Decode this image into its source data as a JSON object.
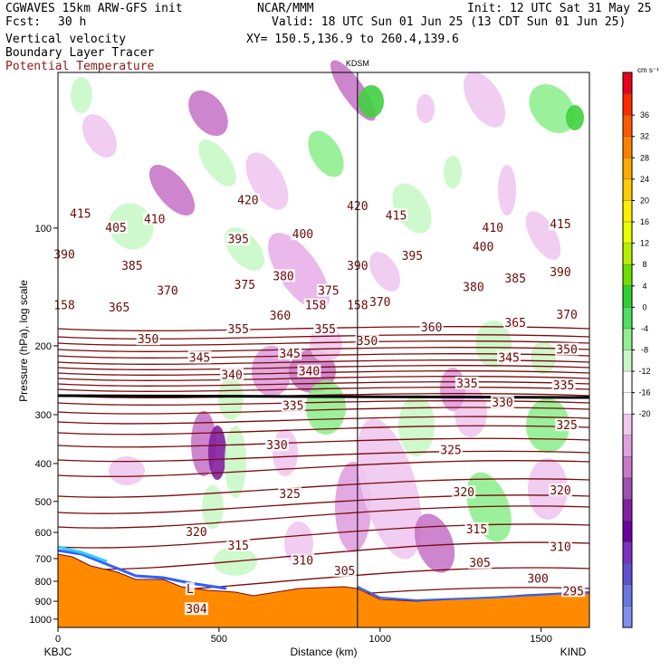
{
  "header": {
    "model": "CGWAVES 15km ARW-GFS init",
    "fcst_label": "Fcst:",
    "fcst_value": "30 h",
    "line_vv": "Vertical velocity",
    "line_blt": "Boundary Layer Tracer",
    "line_pt": "Potential Temperature",
    "org": "NCAR/MMM",
    "init": "Init: 12 UTC Sat 31 May 25",
    "valid": "Valid: 18 UTC Sun 01 Jun 25 (13 CDT Sun 01 Jun 25)",
    "xy": "XY= 150.5,136.9 to 260.4,139.6",
    "station_mid": "KDSM"
  },
  "colorbar": {
    "unit": "cm s⁻¹",
    "ticks": [
      "36",
      "32",
      "28",
      "24",
      "20",
      "16",
      "12",
      "8",
      "4",
      "0",
      "-4",
      "-8",
      "-12",
      "-16",
      "-20"
    ],
    "colors": [
      "#e8001c",
      "#ff2a00",
      "#ff5a00",
      "#ff8000",
      "#ffaa00",
      "#ffcc00",
      "#ffee00",
      "#e8ff00",
      "#b4f000",
      "#6ee000",
      "#30d030",
      "#50e060",
      "#90f090",
      "#c8f8c8",
      "#ffffff",
      "#ffffff",
      "#f0c8f0",
      "#e0a0e0",
      "#c878c8",
      "#a050b0",
      "#8020a0",
      "#6a00a0",
      "#7a30c0",
      "#6050d0",
      "#6878e0",
      "#8090f0"
    ]
  },
  "chart_data": {
    "type": "cross-section",
    "xlabel": "Distance (km)",
    "ylabel": "Pressure (hPa), log scale",
    "x_ticks": [
      0,
      500,
      1000,
      1500
    ],
    "xlim": [
      0,
      1650
    ],
    "y_ticks": [
      100,
      200,
      300,
      400,
      500,
      600,
      700,
      800,
      900,
      1000
    ],
    "ylim": [
      1050,
      40
    ],
    "left_station": "KBJC",
    "right_station": "KIND",
    "mid_station_x": 930,
    "isentropes": [
      295,
      300,
      305,
      310,
      315,
      320,
      325,
      330,
      335,
      340,
      345,
      350,
      355,
      360,
      365,
      370,
      375,
      380,
      385,
      390,
      395,
      400,
      405,
      410,
      415,
      420
    ],
    "contour_labels": [
      {
        "text": "415",
        "x": 70,
        "p": 92
      },
      {
        "text": "405",
        "x": 180,
        "p": 100
      },
      {
        "text": "410",
        "x": 300,
        "p": 95
      },
      {
        "text": "420",
        "x": 590,
        "p": 85
      },
      {
        "text": "420",
        "x": 930,
        "p": 88
      },
      {
        "text": "415",
        "x": 1050,
        "p": 93
      },
      {
        "text": "410",
        "x": 1350,
        "p": 100
      },
      {
        "text": "415",
        "x": 1560,
        "p": 98
      },
      {
        "text": "390",
        "x": 20,
        "p": 117
      },
      {
        "text": "385",
        "x": 230,
        "p": 125
      },
      {
        "text": "395",
        "x": 560,
        "p": 107
      },
      {
        "text": "400",
        "x": 760,
        "p": 104
      },
      {
        "text": "390",
        "x": 930,
        "p": 125
      },
      {
        "text": "395",
        "x": 1100,
        "p": 118
      },
      {
        "text": "400",
        "x": 1320,
        "p": 112
      },
      {
        "text": "370",
        "x": 340,
        "p": 145
      },
      {
        "text": "375",
        "x": 580,
        "p": 140
      },
      {
        "text": "380",
        "x": 700,
        "p": 133
      },
      {
        "text": "375",
        "x": 840,
        "p": 145
      },
      {
        "text": "380",
        "x": 1290,
        "p": 142
      },
      {
        "text": "385",
        "x": 1420,
        "p": 135
      },
      {
        "text": "390",
        "x": 1560,
        "p": 130
      },
      {
        "text": "365",
        "x": 190,
        "p": 160
      },
      {
        "text": "158",
        "x": 20,
        "p": 158
      },
      {
        "text": "158",
        "x": 800,
        "p": 158
      },
      {
        "text": "158",
        "x": 930,
        "p": 158
      },
      {
        "text": "370",
        "x": 1000,
        "p": 155
      },
      {
        "text": "360",
        "x": 690,
        "p": 168
      },
      {
        "text": "355",
        "x": 560,
        "p": 182
      },
      {
        "text": "355",
        "x": 830,
        "p": 182
      },
      {
        "text": "360",
        "x": 1160,
        "p": 180
      },
      {
        "text": "365",
        "x": 1420,
        "p": 175
      },
      {
        "text": "370",
        "x": 1580,
        "p": 167
      },
      {
        "text": "350",
        "x": 280,
        "p": 193
      },
      {
        "text": "350",
        "x": 960,
        "p": 195
      },
      {
        "text": "345",
        "x": 440,
        "p": 215
      },
      {
        "text": "345",
        "x": 720,
        "p": 210
      },
      {
        "text": "345",
        "x": 1400,
        "p": 215
      },
      {
        "text": "350",
        "x": 1580,
        "p": 205
      },
      {
        "text": "340",
        "x": 540,
        "p": 238
      },
      {
        "text": "340",
        "x": 780,
        "p": 233
      },
      {
        "text": "335",
        "x": 1270,
        "p": 250
      },
      {
        "text": "335",
        "x": 1570,
        "p": 253
      },
      {
        "text": "335",
        "x": 730,
        "p": 285
      },
      {
        "text": "330",
        "x": 1380,
        "p": 280
      },
      {
        "text": "325",
        "x": 1580,
        "p": 320
      },
      {
        "text": "330",
        "x": 680,
        "p": 360
      },
      {
        "text": "325",
        "x": 1220,
        "p": 370
      },
      {
        "text": "325",
        "x": 720,
        "p": 480
      },
      {
        "text": "320",
        "x": 1260,
        "p": 475
      },
      {
        "text": "320",
        "x": 1560,
        "p": 470
      },
      {
        "text": "320",
        "x": 430,
        "p": 600
      },
      {
        "text": "315",
        "x": 560,
        "p": 650
      },
      {
        "text": "315",
        "x": 1300,
        "p": 590
      },
      {
        "text": "310",
        "x": 760,
        "p": 710
      },
      {
        "text": "310",
        "x": 1560,
        "p": 655
      },
      {
        "text": "305",
        "x": 890,
        "p": 755
      },
      {
        "text": "305",
        "x": 1310,
        "p": 720
      },
      {
        "text": "300",
        "x": 1490,
        "p": 790
      },
      {
        "text": "295",
        "x": 1600,
        "p": 850
      },
      {
        "text": "L",
        "x": 410,
        "p": 840
      },
      {
        "text": "304",
        "x": 430,
        "p": 945
      }
    ]
  }
}
